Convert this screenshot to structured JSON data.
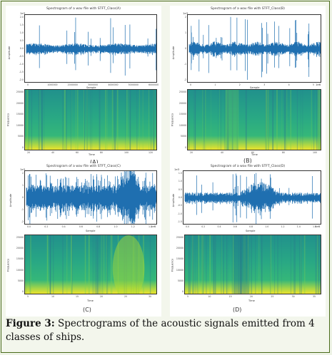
{
  "figure": {
    "panels": [
      {
        "id": "A",
        "letter": "(A)",
        "wave": {
          "title": "Spectrogram of a wav file with STFT_Class(A)",
          "scale": "1e3",
          "ylabel": "Amplitude",
          "xlabel": "Sample",
          "yticks": [
            "2.0",
            "1.5",
            "1.0",
            "0.5",
            "0.0",
            "-0.5",
            "-1.0",
            "-1.5",
            "-2.0"
          ],
          "xticks": [
            "0",
            "1000000",
            "2000000",
            "3000000",
            "4000000",
            "5000000",
            "6000000"
          ]
        },
        "spec": {
          "ylabel": "Frequency",
          "xlabel": "Time",
          "yticks": [
            "25000",
            "20000",
            "15000",
            "10000",
            "5000",
            "0"
          ],
          "xticks": [
            "20",
            "40",
            "60",
            "80",
            "100",
            "120"
          ]
        }
      },
      {
        "id": "B",
        "letter": "(B)",
        "wave": {
          "title": "Spectrogram of a wav file with STFT_Class(B)",
          "scale": "1e3",
          "ylabel": "Amplitude",
          "xlabel": "Sample",
          "xscale": "1e6",
          "yticks": [
            "2",
            "1",
            "0",
            "-1",
            "-2"
          ],
          "xticks": [
            "0",
            "1",
            "2",
            "3",
            "4",
            "5"
          ]
        },
        "spec": {
          "ylabel": "Frequency",
          "xlabel": "Time",
          "yticks": [
            "25000",
            "20000",
            "15000",
            "10000",
            "5000",
            "0"
          ],
          "xticks": [
            "20",
            "40",
            "60",
            "80",
            "100"
          ]
        }
      },
      {
        "id": "C",
        "letter": "(C)",
        "wave": {
          "title": "Spectrogram of a wav file with STFT_Class(C)",
          "scale": "1e3",
          "ylabel": "Amplitude",
          "xlabel": "Sample",
          "xscale": "1e6",
          "yticks": [
            "2",
            "1",
            "0",
            "-1",
            "-2"
          ],
          "xticks": [
            "0.0",
            "0.2",
            "0.4",
            "0.6",
            "0.8",
            "1.0",
            "1.2",
            "1.4"
          ]
        },
        "spec": {
          "ylabel": "Frequency",
          "xlabel": "Time",
          "yticks": [
            "25000",
            "20000",
            "15000",
            "10000",
            "5000",
            "0"
          ],
          "xticks": [
            "5",
            "10",
            "15",
            "20",
            "25",
            "30"
          ]
        }
      },
      {
        "id": "D",
        "letter": "(D)",
        "wave": {
          "title": "Spectrogram of a wav file with STFT_Class(D)",
          "scale": "1e3",
          "ylabel": "Amplitude",
          "xlabel": "Sample",
          "xscale": "1e6",
          "yticks": [
            "1.5",
            "1.0",
            "0.5",
            "0.0",
            "-0.5",
            "-1.0",
            "-1.5"
          ],
          "xticks": [
            "0.0",
            "0.2",
            "0.4",
            "0.6",
            "0.8",
            "1.0",
            "1.2",
            "1.4",
            "1.6"
          ]
        },
        "spec": {
          "ylabel": "Frequency",
          "xlabel": "Time",
          "yticks": [
            "25000",
            "20000",
            "15000",
            "10000",
            "5000",
            "0"
          ],
          "xticks": [
            "5",
            "10",
            "15",
            "20",
            "25",
            "30",
            "35"
          ]
        }
      }
    ],
    "colors": {
      "wave": "#1f6fb0",
      "spec_low": "#fde725",
      "spec_mid": "#35b779",
      "spec_high": "#21918c",
      "spec_dark": "#2a788e",
      "frame": "#4a6b1c"
    }
  },
  "caption": {
    "label": "Figure 3:",
    "text": " Spectrograms of the acoustic signals emitted from 4 classes of ships."
  }
}
